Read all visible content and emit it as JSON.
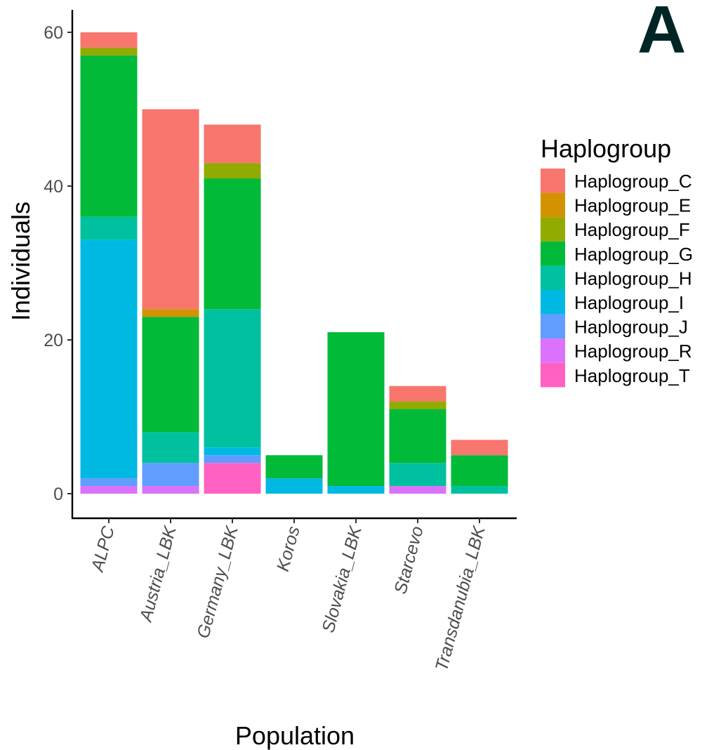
{
  "panel_label": "A",
  "chart_data": {
    "type": "bar",
    "stacked": true,
    "xlabel": "Population",
    "ylabel": "Individuals",
    "ylim": [
      0,
      60
    ],
    "yticks": [
      0,
      20,
      40,
      60
    ],
    "grid": false,
    "legend_title": "Haplogroup",
    "legend_position": "right",
    "categories": [
      "ALPC",
      "Austria_LBK",
      "Germany_LBK",
      "Koros",
      "Slovakia_LBK",
      "Starcevo",
      "Transdanubia_LBK"
    ],
    "series": [
      {
        "name": "Haplogroup_T",
        "color": "#FF61C3",
        "values": [
          0,
          0,
          4,
          0,
          0,
          0,
          0
        ]
      },
      {
        "name": "Haplogroup_R",
        "color": "#DB72FB",
        "values": [
          1,
          1,
          0,
          0,
          0,
          1,
          0
        ]
      },
      {
        "name": "Haplogroup_J",
        "color": "#619CFF",
        "values": [
          1,
          3,
          1,
          0,
          0,
          0,
          0
        ]
      },
      {
        "name": "Haplogroup_I",
        "color": "#00B9E3",
        "values": [
          31,
          0,
          1,
          2,
          1,
          0,
          0
        ]
      },
      {
        "name": "Haplogroup_H",
        "color": "#00C19F",
        "values": [
          3,
          4,
          18,
          0,
          0,
          3,
          1
        ]
      },
      {
        "name": "Haplogroup_G",
        "color": "#00BA38",
        "values": [
          21,
          15,
          17,
          3,
          20,
          7,
          4
        ]
      },
      {
        "name": "Haplogroup_F",
        "color": "#93AA00",
        "values": [
          1,
          0,
          2,
          0,
          0,
          1,
          0
        ]
      },
      {
        "name": "Haplogroup_E",
        "color": "#D39200",
        "values": [
          0,
          1,
          0,
          0,
          0,
          0,
          0
        ]
      },
      {
        "name": "Haplogroup_C",
        "color": "#F8766D",
        "values": [
          2,
          26,
          5,
          0,
          0,
          2,
          2
        ]
      }
    ],
    "legend_order": [
      "Haplogroup_C",
      "Haplogroup_E",
      "Haplogroup_F",
      "Haplogroup_G",
      "Haplogroup_H",
      "Haplogroup_I",
      "Haplogroup_J",
      "Haplogroup_R",
      "Haplogroup_T"
    ]
  }
}
